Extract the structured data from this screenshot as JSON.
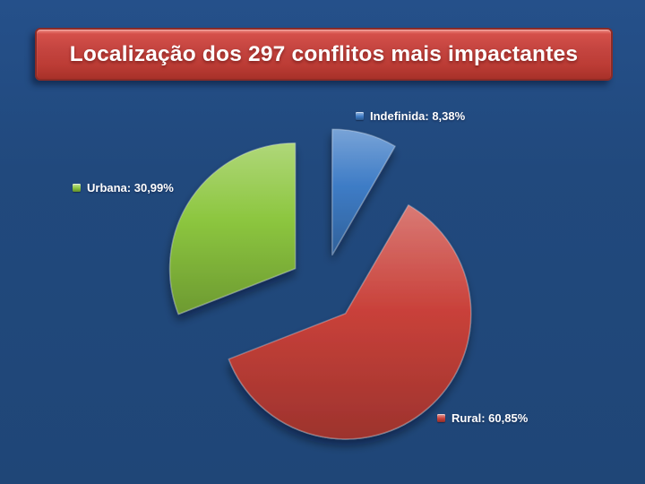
{
  "slide": {
    "background_color": "#21497d",
    "title": "Localização dos 297 conflitos mais impactantes",
    "title_color": "#ffffff",
    "banner": {
      "fill_color": "#c5423d",
      "border_color": "#8c2b26"
    }
  },
  "chart_data": {
    "type": "pie",
    "title": "Localização dos 297 conflitos mais impactantes",
    "value_unit": "%",
    "value_format": "comma-decimal",
    "start_angle_deg": 0,
    "direction": "clockwise",
    "exploded": true,
    "legend_position": "outside-data-labels",
    "slices": [
      {
        "label": "Indefinida",
        "value": 8.38,
        "display": "Indefinida: 8,38%",
        "color": "#3e7cc6"
      },
      {
        "label": "Rural",
        "value": 60.85,
        "display": "Rural: 60,85%",
        "color": "#c9413a"
      },
      {
        "label": "Urbana",
        "value": 30.99,
        "display": "Urbana: 30,99%",
        "color": "#8cc63f"
      }
    ]
  }
}
